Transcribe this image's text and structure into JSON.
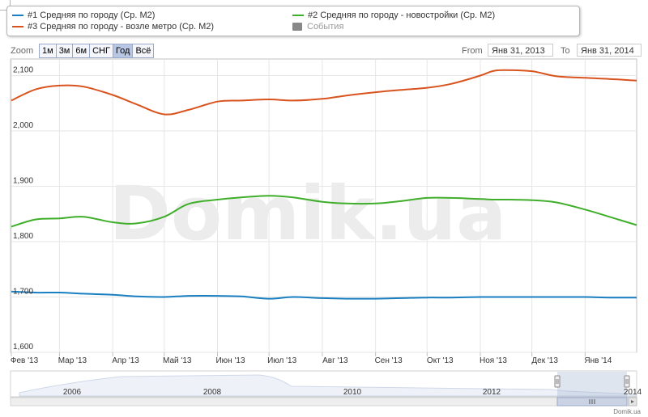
{
  "legend": {
    "items": [
      {
        "label": "#1 Средняя по городу (Ср. М2)",
        "color": "#1a7fc0"
      },
      {
        "label": "#2 Средняя по городу - новостройки (Ср. М2)",
        "color": "#3fae2a"
      },
      {
        "label": "#3 Средняя по городу - возле метро (Ср. М2)",
        "color": "#d9531e"
      },
      {
        "label": "События",
        "color": "#888888"
      }
    ]
  },
  "zoom": {
    "label": "Zoom",
    "buttons": [
      "1м",
      "3м",
      "6м",
      "СНГ",
      "Год",
      "Всё"
    ],
    "active": "Год"
  },
  "range": {
    "from_label": "From",
    "from_value": "Янв 31, 2013",
    "to_label": "To",
    "to_value": "Янв 31, 2014"
  },
  "watermark": "Domik.ua",
  "credit": "Domik.ua",
  "navigator": {
    "years": [
      "2006",
      "2008",
      "2010",
      "2012",
      "2014"
    ],
    "scroll_icon": "grip-lines-icon"
  },
  "chart_data": {
    "type": "line",
    "x_tick_labels": [
      "Фев '13",
      "Мар '13",
      "Апр '13",
      "Май '13",
      "Июн '13",
      "Июл '13",
      "Авг '13",
      "Сен '13",
      "Окт '13",
      "Ноя '13",
      "Дек '13",
      "Янв '14"
    ],
    "y_tick_labels": [
      "1,600",
      "1,700",
      "1,800",
      "1,900",
      "2,000",
      "2,100"
    ],
    "ylim": [
      1600,
      2130
    ],
    "x_dates": [
      "2013-02-01",
      "2013-02-15",
      "2013-03-01",
      "2013-03-15",
      "2013-04-01",
      "2013-04-15",
      "2013-05-01",
      "2013-05-15",
      "2013-06-01",
      "2013-06-15",
      "2013-07-01",
      "2013-07-15",
      "2013-08-01",
      "2013-08-15",
      "2013-09-01",
      "2013-09-15",
      "2013-10-01",
      "2013-10-15",
      "2013-11-01",
      "2013-11-08",
      "2013-11-15",
      "2013-12-01",
      "2013-12-15",
      "2014-01-01",
      "2014-01-15",
      "2014-01-31"
    ],
    "series": [
      {
        "name": "#1 Средняя по городу (Ср. М2)",
        "color": "#1a7fc0",
        "values": [
          1710,
          1708,
          1708,
          1706,
          1704,
          1701,
          1700,
          1702,
          1702,
          1701,
          1697,
          1700,
          1698,
          1697,
          1697,
          1698,
          1699,
          1699,
          1700,
          1700,
          1700,
          1700,
          1700,
          1700,
          1699,
          1699
        ]
      },
      {
        "name": "#2 Средняя по городу - новостройки (Ср. М2)",
        "color": "#3fae2a",
        "values": [
          1827,
          1840,
          1842,
          1845,
          1835,
          1833,
          1845,
          1868,
          1876,
          1880,
          1883,
          1880,
          1872,
          1869,
          1869,
          1873,
          1879,
          1879,
          1877,
          1876,
          1876,
          1875,
          1871,
          1858,
          1845,
          1830
        ]
      },
      {
        "name": "#3 Средняя по городу - возле метро (Ср. М2)",
        "color": "#d9531e",
        "values": [
          2055,
          2075,
          2082,
          2080,
          2065,
          2048,
          2030,
          2038,
          2053,
          2055,
          2057,
          2055,
          2058,
          2064,
          2070,
          2074,
          2078,
          2085,
          2100,
          2108,
          2110,
          2108,
          2099,
          2096,
          2094,
          2091
        ]
      }
    ],
    "grid": true,
    "legend_position": "top"
  }
}
